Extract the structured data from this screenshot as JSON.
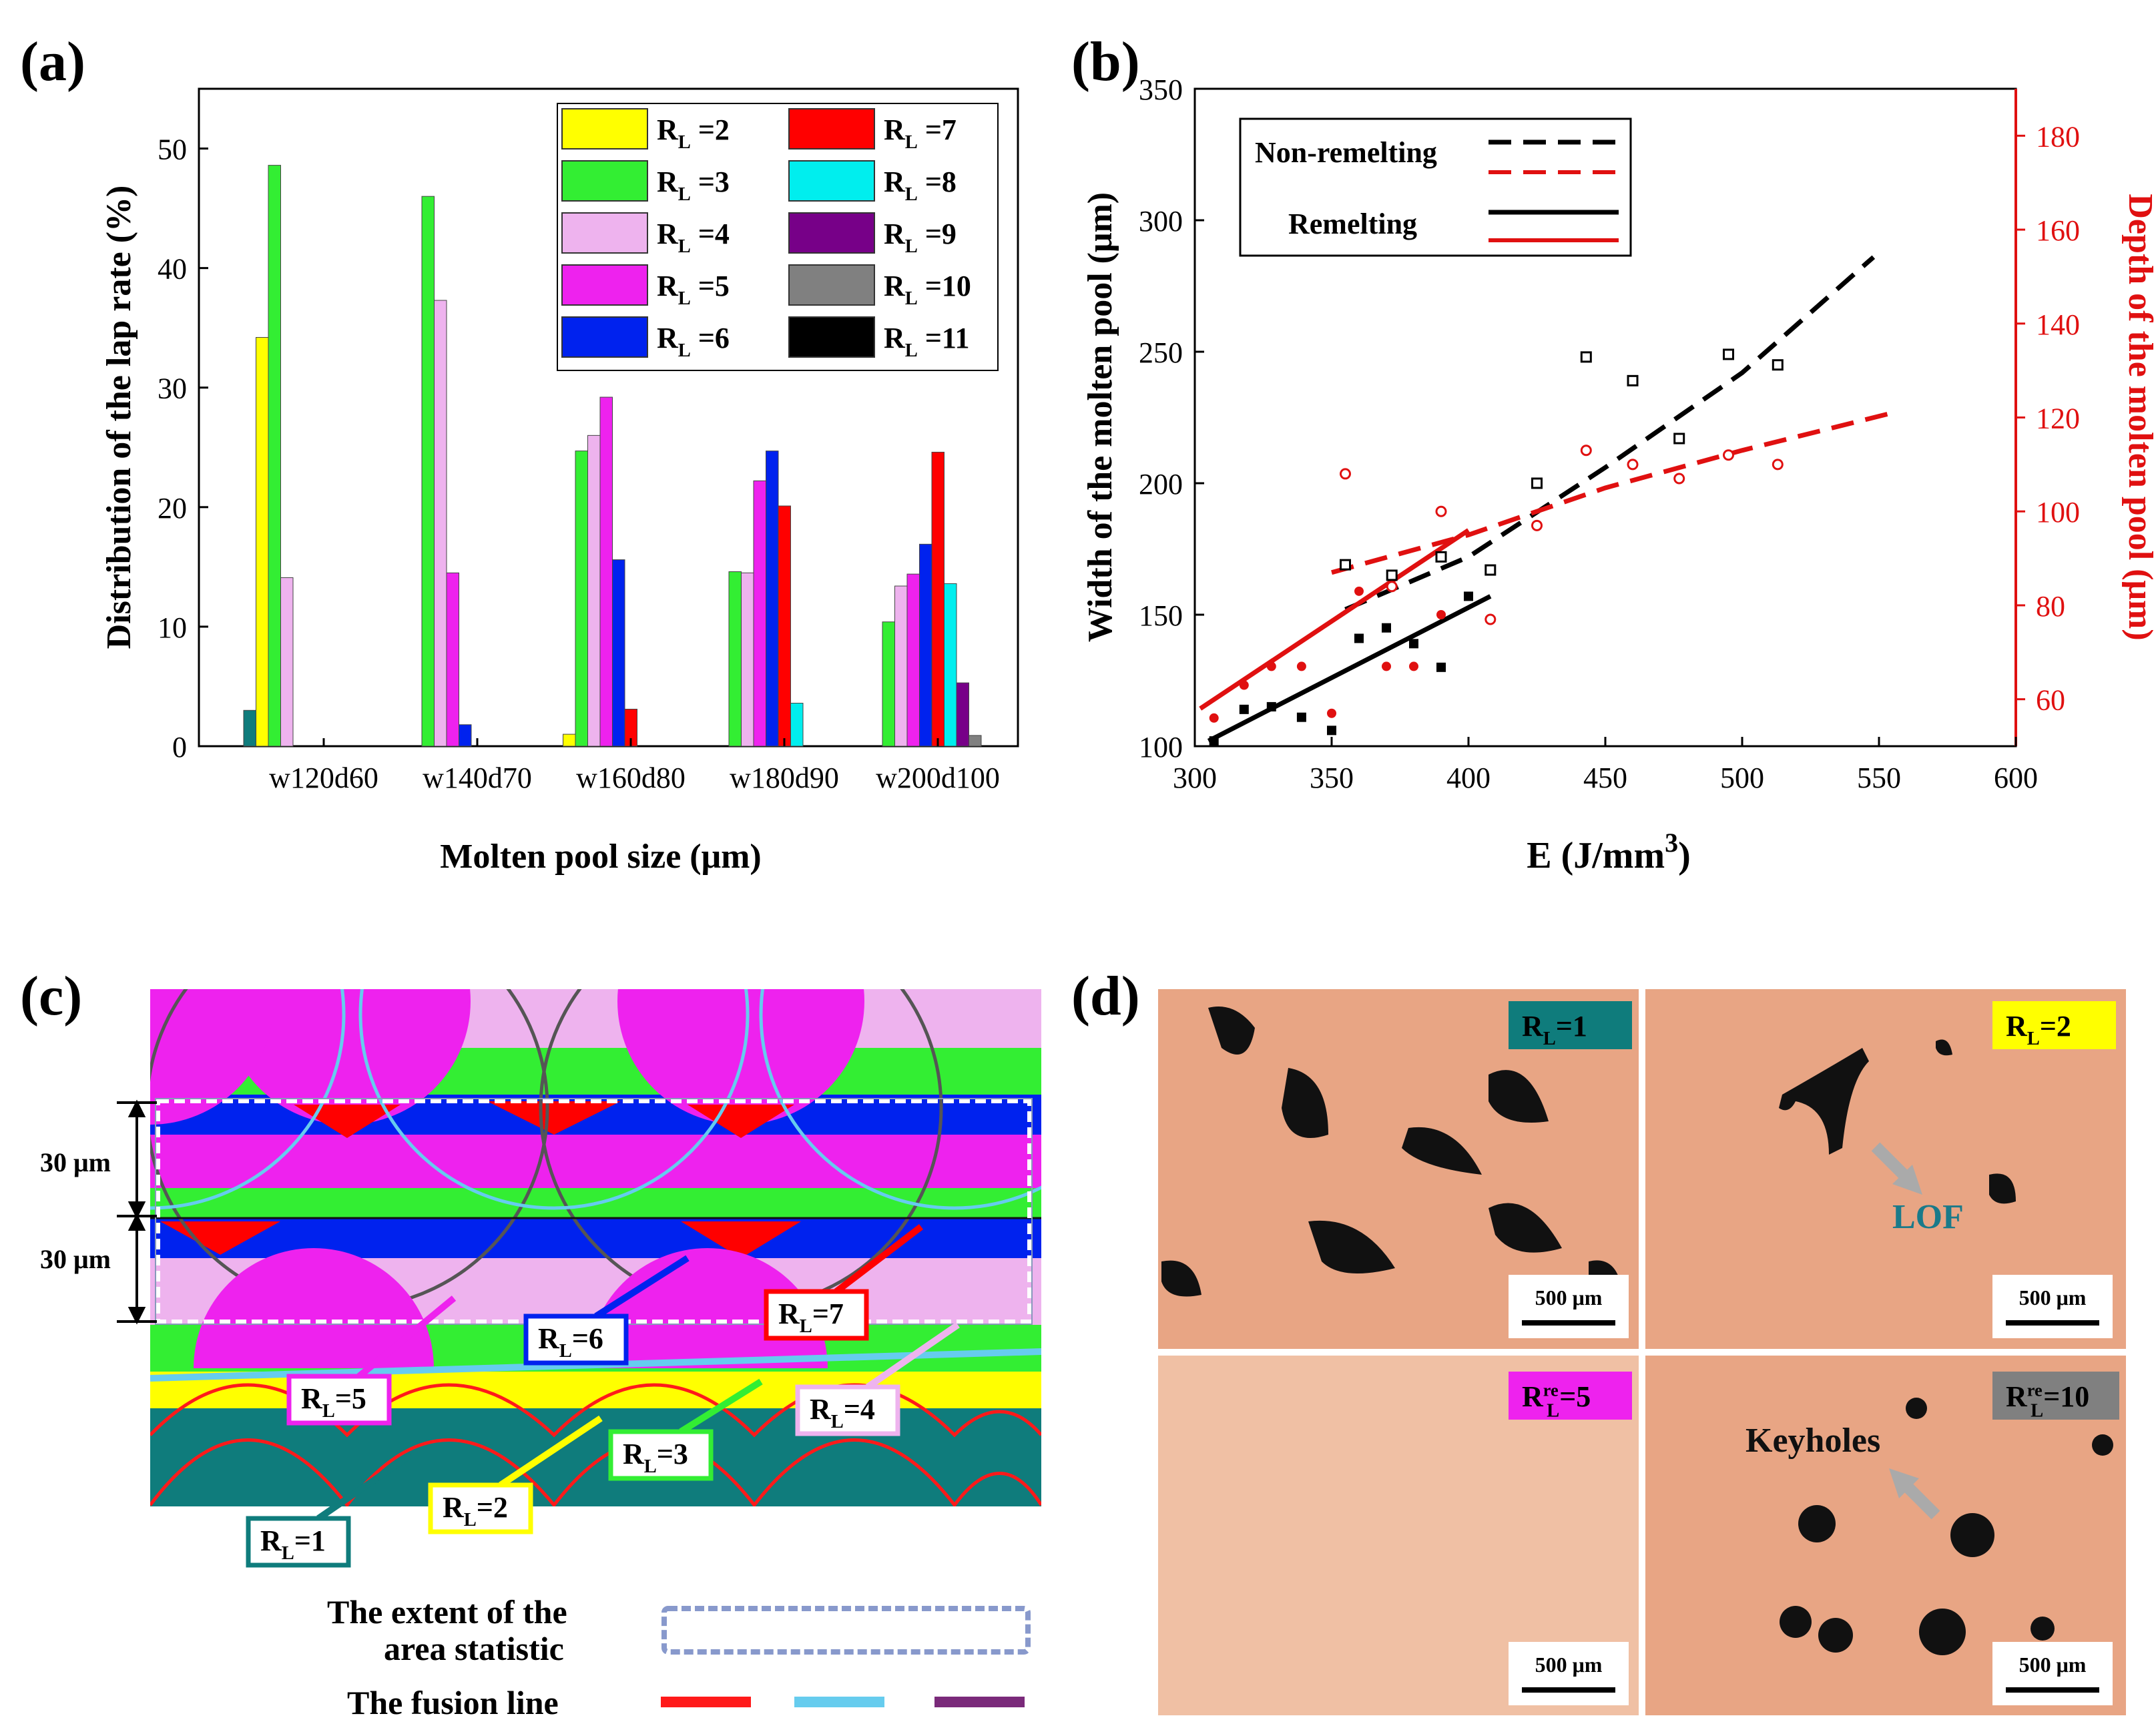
{
  "panels": {
    "a": "(a)",
    "b": "(b)",
    "c": "(c)",
    "d": "(d)"
  },
  "colors": {
    "RL1": "#0f7c7c",
    "RL2": "#ffff00",
    "RL3": "#33ee33",
    "RL4": "#eeb3ee",
    "RL5": "#ee22ee",
    "RL6": "#0022ee",
    "RL7": "#ff0000",
    "RL8": "#00eeee",
    "RL9": "#770088",
    "RL10": "#808080",
    "RL11": "#000000",
    "fusion_red": "#ff1a1a",
    "fusion_blue": "#66ccee",
    "fusion_purple": "#7a2a7a",
    "photo_bg": "#e8a584",
    "photo_bg_light": "#f0c0a4"
  },
  "chart_data": [
    {
      "type": "bar",
      "panel": "a",
      "xlabel": "Molten pool size (μm)",
      "ylabel": "Distribution of the lap rate (%)",
      "ylim": [
        0,
        55
      ],
      "yticks": [
        0,
        10,
        20,
        30,
        40,
        50
      ],
      "categories": [
        "w120d60",
        "w140d70",
        "w160d80",
        "w180d90",
        "w200d100"
      ],
      "series": [
        {
          "name": "R_L =1",
          "colorKey": "RL1",
          "values": [
            3,
            0,
            0,
            0,
            0
          ]
        },
        {
          "name": "R_L =2",
          "colorKey": "RL2",
          "values": [
            34.2,
            0,
            1,
            0,
            0
          ]
        },
        {
          "name": "R_L =3",
          "colorKey": "RL3",
          "values": [
            48.6,
            46,
            24.7,
            14.6,
            10.4
          ]
        },
        {
          "name": "R_L =4",
          "colorKey": "RL4",
          "values": [
            14.1,
            37.3,
            26,
            14.5,
            13.4
          ]
        },
        {
          "name": "R_L =5",
          "colorKey": "RL5",
          "values": [
            0,
            14.5,
            29.2,
            22.2,
            14.4
          ]
        },
        {
          "name": "R_L =6",
          "colorKey": "RL6",
          "values": [
            0,
            1.8,
            15.6,
            24.7,
            16.9
          ]
        },
        {
          "name": "R_L =7",
          "colorKey": "RL7",
          "values": [
            0,
            0,
            3.1,
            20.1,
            24.6
          ]
        },
        {
          "name": "R_L =8",
          "colorKey": "RL8",
          "values": [
            0,
            0,
            0,
            3.6,
            13.6
          ]
        },
        {
          "name": "R_L =9",
          "colorKey": "RL9",
          "values": [
            0,
            0,
            0,
            0,
            5.3
          ]
        },
        {
          "name": "R_L =10",
          "colorKey": "RL10",
          "values": [
            0,
            0,
            0,
            0,
            0.9
          ]
        },
        {
          "name": "R_L =11",
          "colorKey": "RL11",
          "values": [
            0,
            0,
            0,
            0,
            0
          ]
        }
      ],
      "legend": [
        {
          "base": "R",
          "sub": "L",
          "rest": " =2",
          "colorKey": "RL2"
        },
        {
          "base": "R",
          "sub": "L",
          "rest": " =7",
          "colorKey": "RL7"
        },
        {
          "base": "R",
          "sub": "L",
          "rest": " =3",
          "colorKey": "RL3"
        },
        {
          "base": "R",
          "sub": "L",
          "rest": " =8",
          "colorKey": "RL8"
        },
        {
          "base": "R",
          "sub": "L",
          "rest": " =4",
          "colorKey": "RL4"
        },
        {
          "base": "R",
          "sub": "L",
          "rest": " =9",
          "colorKey": "RL9"
        },
        {
          "base": "R",
          "sub": "L",
          "rest": " =5",
          "colorKey": "RL5"
        },
        {
          "base": "R",
          "sub": "L",
          "rest": " =10",
          "colorKey": "RL10"
        },
        {
          "base": "R",
          "sub": "L",
          "rest": " =6",
          "colorKey": "RL6"
        },
        {
          "base": "R",
          "sub": "L",
          "rest": " =11",
          "colorKey": "RL11"
        }
      ]
    },
    {
      "type": "scatter",
      "panel": "b",
      "xlabel_main": "E (J/mm",
      "xlabel_sup": "3",
      "xlabel_end": ")",
      "ylabel_left": "Width of the molten pool (μm)",
      "ylabel_right": "Depth of the molten pool (μm)",
      "xlim": [
        300,
        600
      ],
      "xticks": [
        300,
        350,
        400,
        450,
        500,
        550,
        600
      ],
      "ylim_left": [
        100,
        350
      ],
      "yticks_left": [
        100,
        150,
        200,
        250,
        300,
        350
      ],
      "ylim_right": [
        50,
        190
      ],
      "yticks_right": [
        60,
        80,
        100,
        120,
        140,
        160,
        180
      ],
      "legend": {
        "nonremelting": "Non-remelting",
        "remelting": "Remelting"
      },
      "series": [
        {
          "name": "Width non-remelting",
          "axis": "left",
          "color": "#000000",
          "marker": "open-square",
          "x": [
            355,
            372,
            390,
            408,
            425,
            443,
            460,
            477,
            495,
            513
          ],
          "y": [
            169,
            165,
            172,
            167,
            200,
            248,
            239,
            217,
            249,
            245
          ]
        },
        {
          "name": "Width remelting",
          "axis": "left",
          "color": "#000000",
          "marker": "filled-square",
          "x": [
            307,
            318,
            328,
            339,
            350,
            360,
            370,
            380,
            390,
            400
          ],
          "y": [
            102,
            114,
            115,
            111,
            106,
            141,
            145,
            139,
            130,
            157
          ]
        },
        {
          "name": "Depth non-remelting",
          "axis": "right",
          "color": "#e01010",
          "marker": "open-circle",
          "x": [
            355,
            372,
            390,
            408,
            425,
            443,
            460,
            477,
            495,
            513
          ],
          "y": [
            108,
            84,
            100,
            77,
            97,
            113,
            110,
            107,
            112,
            110
          ]
        },
        {
          "name": "Depth remelting",
          "axis": "right",
          "color": "#e01010",
          "marker": "filled-circle",
          "x": [
            307,
            318,
            328,
            339,
            350,
            360,
            370,
            380,
            390
          ],
          "y": [
            56,
            63,
            67,
            67,
            57,
            83,
            67,
            67,
            78
          ]
        }
      ],
      "fits": [
        {
          "name": "Width non-remelting fit",
          "axis": "left",
          "color": "#000000",
          "dash": true,
          "points": [
            [
              355,
              152
            ],
            [
              400,
              172
            ],
            [
              450,
              206
            ],
            [
              500,
              242
            ],
            [
              548,
              286
            ]
          ]
        },
        {
          "name": "Depth non-remelting fit",
          "axis": "right",
          "color": "#e01010",
          "dash": true,
          "points": [
            [
              350,
              87
            ],
            [
              400,
              95
            ],
            [
              450,
              105
            ],
            [
              500,
              113
            ],
            [
              555,
              121
            ]
          ]
        },
        {
          "name": "Width remelting fit",
          "axis": "left",
          "color": "#000000",
          "dash": false,
          "points": [
            [
              305,
              102
            ],
            [
              408,
              157
            ]
          ]
        },
        {
          "name": "Depth remelting fit",
          "axis": "right",
          "color": "#e01010",
          "dash": false,
          "points": [
            [
              302,
              58
            ],
            [
              400,
              96
            ]
          ]
        }
      ]
    }
  ],
  "panel_c": {
    "dim_top": "30 μm",
    "dim_bottom": "30 μm",
    "labels": [
      {
        "key": "RL5",
        "base": "R",
        "sub": "L",
        "rest": "=5"
      },
      {
        "key": "RL6",
        "base": "R",
        "sub": "L",
        "rest": "=6"
      },
      {
        "key": "RL7",
        "base": "R",
        "sub": "L",
        "rest": "=7"
      },
      {
        "key": "RL4",
        "base": "R",
        "sub": "L",
        "rest": "=4"
      },
      {
        "key": "RL3",
        "base": "R",
        "sub": "L",
        "rest": "=3"
      },
      {
        "key": "RL2",
        "base": "R",
        "sub": "L",
        "rest": "=2"
      },
      {
        "key": "RL1",
        "base": "R",
        "sub": "L",
        "rest": "=1"
      }
    ],
    "legend_extent_line1": "The extent of the",
    "legend_extent_line2": "area statistic",
    "legend_fusion": "The fusion line"
  },
  "panel_d": {
    "tiles": [
      {
        "base": "R",
        "sub": "L",
        "sup": "",
        "rest": "=1",
        "bg": "#0f7c7c",
        "fg": "#111111"
      },
      {
        "base": "R",
        "sub": "L",
        "sup": "",
        "rest": "=2",
        "bg": "#ffff00",
        "fg": "#111111"
      },
      {
        "base": "R",
        "sub": "L",
        "sup": "re",
        "rest": "=5",
        "bg": "#ee22ee",
        "fg": "#111111"
      },
      {
        "base": "R",
        "sub": "L",
        "sup": "re",
        "rest": "=10",
        "bg": "#808080",
        "fg": "#111111"
      }
    ],
    "scale_bar": "500 μm",
    "lof": "LOF",
    "keyholes": "Keyholes"
  }
}
